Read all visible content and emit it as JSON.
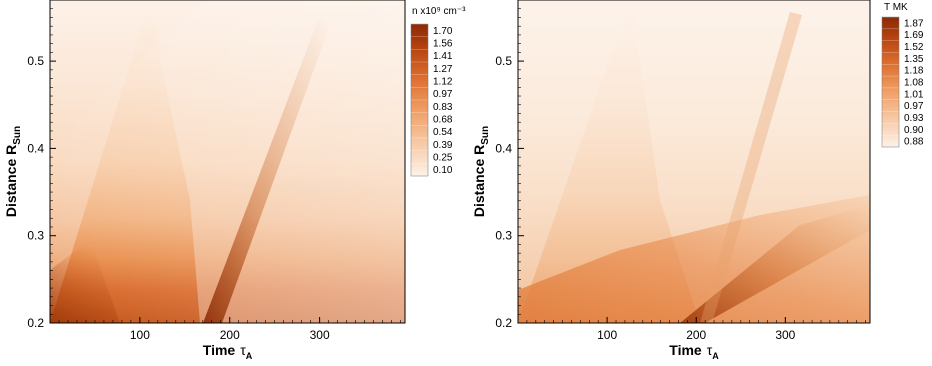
{
  "chart_data": [
    {
      "type": "heatmap",
      "panel": "left",
      "xlabel_main": "Time",
      "xlabel_symbol": "τ",
      "xlabel_sub": "A",
      "ylabel_main": "Distance R",
      "ylabel_sub": "Sun",
      "xlim": [
        0,
        395
      ],
      "ylim": [
        0.2,
        0.57
      ],
      "xticks": [
        "100",
        "200",
        "300"
      ],
      "yticks": [
        "0.2",
        "0.3",
        "0.4",
        "0.5"
      ],
      "xtick_values": [
        100,
        200,
        300
      ],
      "ytick_values": [
        0.2,
        0.3,
        0.4,
        0.5
      ],
      "colorbar_title": "n x10⁹ cm⁻³",
      "colorbar_levels": [
        "1.70",
        "1.56",
        "1.41",
        "1.27",
        "1.12",
        "0.97",
        "0.83",
        "0.68",
        "0.54",
        "0.39",
        "0.25",
        "0.10"
      ],
      "colors": {
        "low": "#fdf3ea",
        "high": "#8a2a05"
      }
    },
    {
      "type": "heatmap",
      "panel": "right",
      "xlabel_main": "Time",
      "xlabel_symbol": "τ",
      "xlabel_sub": "A",
      "ylabel_main": "Distance R",
      "ylabel_sub": "Sun",
      "xlim": [
        0,
        395
      ],
      "ylim": [
        0.2,
        0.57
      ],
      "xticks": [
        "100",
        "200",
        "300"
      ],
      "yticks": [
        "0.2",
        "0.3",
        "0.4",
        "0.5"
      ],
      "xtick_values": [
        100,
        200,
        300
      ],
      "ytick_values": [
        0.2,
        0.3,
        0.4,
        0.5
      ],
      "colorbar_title": "T MK",
      "colorbar_levels": [
        "1.87",
        "1.69",
        "1.52",
        "1.35",
        "1.18",
        "1.08",
        "1.01",
        "0.97",
        "0.93",
        "0.90",
        "0.88"
      ],
      "colors": {
        "low": "#fdf3ea",
        "high": "#8a2a05"
      }
    }
  ]
}
